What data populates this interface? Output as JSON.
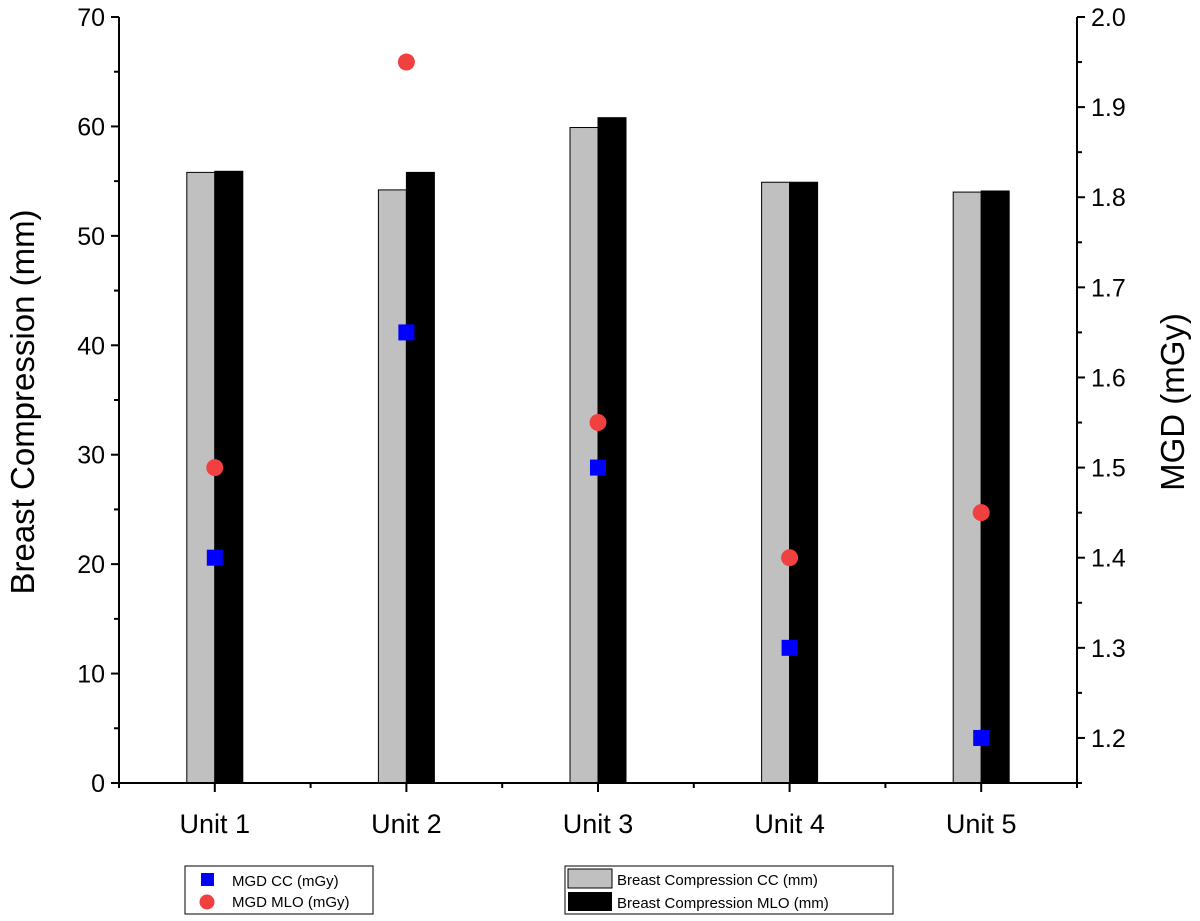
{
  "chart_data": {
    "type": "bar",
    "categories": [
      "Unit 1",
      "Unit 2",
      "Unit 3",
      "Unit 4",
      "Unit 5"
    ],
    "ylabel_left": "Breast Compression (mm)",
    "ylabel_right": "MGD (mGy)",
    "ylim_left": [
      0,
      70
    ],
    "ylim_right": [
      1.15,
      2.0
    ],
    "left_ticks": [
      0,
      10,
      20,
      30,
      40,
      50,
      60,
      70
    ],
    "right_ticks": [
      1.2,
      1.3,
      1.4,
      1.5,
      1.6,
      1.7,
      1.8,
      1.9,
      2.0
    ],
    "right_tick_labels": [
      "1.2",
      "1.3",
      "1.4",
      "1.5",
      "1.6",
      "1.7",
      "1.8",
      "1.9",
      "2.0"
    ],
    "bar_series": [
      {
        "name": "Breast Compression CC (mm)",
        "axis": "left",
        "color": "#c0c0c0",
        "values": [
          55.8,
          54.2,
          59.9,
          54.9,
          54.0
        ]
      },
      {
        "name": "Breast Compression MLO (mm)",
        "axis": "left",
        "color": "#000000",
        "values": [
          55.9,
          55.8,
          60.8,
          54.9,
          54.1
        ]
      }
    ],
    "point_series": [
      {
        "name": "MGD CC (mGy)",
        "axis": "right",
        "marker": "square",
        "color": "#0000ff",
        "values": [
          1.4,
          1.65,
          1.5,
          1.3,
          1.2
        ]
      },
      {
        "name": "MGD MLO (mGy)",
        "axis": "right",
        "marker": "circle",
        "color": "#f04040",
        "values": [
          1.5,
          1.95,
          1.55,
          1.4,
          1.45
        ]
      }
    ],
    "grid": false,
    "legend_placement": "bottom"
  }
}
